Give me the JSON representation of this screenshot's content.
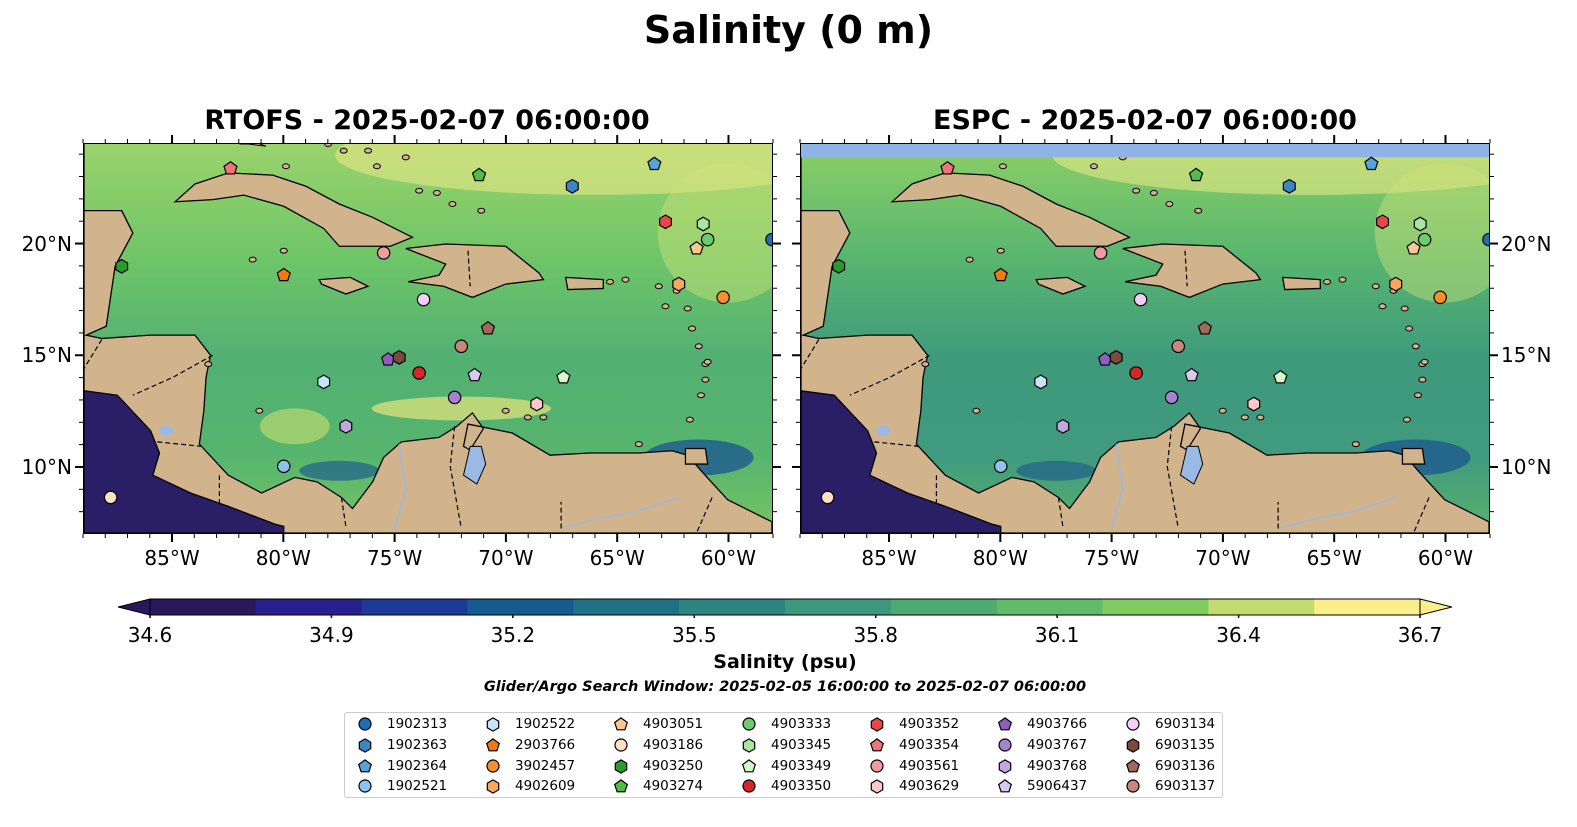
{
  "suptitle": "Salinity (0 m)",
  "panels": [
    {
      "title": "RTOFS - 2025-02-07 06:00:00",
      "model": "RTOFS"
    },
    {
      "title": "ESPC - 2025-02-07 06:00:00",
      "model": "ESPC"
    }
  ],
  "map_extent": {
    "lon": [
      -89,
      -58
    ],
    "lat": [
      7,
      24.5
    ]
  },
  "x_ticks": [
    "85°W",
    "80°W",
    "75°W",
    "70°W",
    "65°W",
    "60°W"
  ],
  "x_tick_values": [
    -85,
    -80,
    -75,
    -70,
    -65,
    -60
  ],
  "y_ticks": [
    "20°N",
    "15°N",
    "10°N"
  ],
  "y_tick_values": [
    20,
    15,
    10
  ],
  "colorbar": {
    "label": "Salinity (psu)",
    "ticks": [
      "34.6",
      "34.9",
      "35.2",
      "35.5",
      "35.8",
      "36.1",
      "36.4",
      "36.7"
    ],
    "range": [
      34.6,
      36.7
    ],
    "extend": "both",
    "cmap_stops": [
      "#29185e",
      "#26218f",
      "#1d3a9b",
      "#145b8f",
      "#1f7285",
      "#2d8581",
      "#3c977e",
      "#4caa72",
      "#5fbb67",
      "#7ecb5f",
      "#c0dc6e",
      "#fbee8b"
    ]
  },
  "search_window": "Glider/Argo Search Window: 2025-02-05 16:00:00 to 2025-02-07 06:00:00",
  "colors": {
    "land": "#d2b48c",
    "land_dark": "#2a1e66",
    "lake": "#9ab9e4",
    "espc_band": "#8fb3e6"
  },
  "floats": [
    {
      "id": "1902313",
      "marker": "circle",
      "color": "#1f6fb4",
      "lon": -58,
      "lat": 20.2
    },
    {
      "id": "1902363",
      "marker": "hexagon",
      "color": "#3d86c6",
      "lon": -67,
      "lat": 22.6
    },
    {
      "id": "1902364",
      "marker": "pentagon",
      "color": "#5aa2dc",
      "lon": -63.3,
      "lat": 23.6
    },
    {
      "id": "1902521",
      "marker": "circle",
      "color": "#8ec3ee",
      "lon": -80,
      "lat": 10
    },
    {
      "id": "1902522",
      "marker": "hexagon",
      "color": "#c6e5fb",
      "lon": -78.2,
      "lat": 13.8
    },
    {
      "id": "2903766",
      "marker": "pentagon",
      "color": "#f07a10",
      "lon": -80,
      "lat": 18.6
    },
    {
      "id": "3902457",
      "marker": "circle",
      "color": "#f78f2f",
      "lon": -60.2,
      "lat": 17.6
    },
    {
      "id": "4902609",
      "marker": "hexagon",
      "color": "#f9a65e",
      "lon": -62.2,
      "lat": 18.2
    },
    {
      "id": "4903051",
      "marker": "pentagon",
      "color": "#fac890",
      "lon": -61.4,
      "lat": 19.8
    },
    {
      "id": "4903186",
      "marker": "circle",
      "color": "#fde0c2",
      "lon": -87.8,
      "lat": 8.6
    },
    {
      "id": "4903250",
      "marker": "hexagon",
      "color": "#2a9a2a",
      "lon": -87.3,
      "lat": 19
    },
    {
      "id": "4903274",
      "marker": "pentagon",
      "color": "#55bb44",
      "lon": -71.2,
      "lat": 23.1
    },
    {
      "id": "4903333",
      "marker": "circle",
      "color": "#6ccb6c",
      "lon": -60.9,
      "lat": 20.2
    },
    {
      "id": "4903345",
      "marker": "hexagon",
      "color": "#a9e5a1",
      "lon": -61.1,
      "lat": 20.9
    },
    {
      "id": "4903349",
      "marker": "pentagon",
      "color": "#d6f7c9",
      "lon": -67.4,
      "lat": 14
    },
    {
      "id": "4903350",
      "marker": "circle",
      "color": "#d62728",
      "lon": -73.9,
      "lat": 14.2
    },
    {
      "id": "4903352",
      "marker": "hexagon",
      "color": "#e8474a",
      "lon": -62.8,
      "lat": 21
    },
    {
      "id": "4903354",
      "marker": "pentagon",
      "color": "#f0757a",
      "lon": -82.4,
      "lat": 23.4
    },
    {
      "id": "4903561",
      "marker": "circle",
      "color": "#f39b9e",
      "lon": -75.5,
      "lat": 19.6
    },
    {
      "id": "4903629",
      "marker": "hexagon",
      "color": "#fcc8ca",
      "lon": -68.6,
      "lat": 12.8
    },
    {
      "id": "4903766",
      "marker": "pentagon",
      "color": "#8e5fbf",
      "lon": -75.3,
      "lat": 14.8
    },
    {
      "id": "4903767",
      "marker": "circle",
      "color": "#a782cf",
      "lon": -72.3,
      "lat": 13.1
    },
    {
      "id": "4903768",
      "marker": "hexagon",
      "color": "#c2a7e0",
      "lon": -77.2,
      "lat": 11.8
    },
    {
      "id": "5906437",
      "marker": "pentagon",
      "color": "#d9c8f0",
      "lon": -71.4,
      "lat": 14.1
    },
    {
      "id": "6903134",
      "marker": "circle",
      "color": "#f0d0f6",
      "lon": -73.7,
      "lat": 17.5
    },
    {
      "id": "6903135",
      "marker": "hexagon",
      "color": "#7a4a3c",
      "lon": -74.8,
      "lat": 14.9
    },
    {
      "id": "6903136",
      "marker": "pentagon",
      "color": "#a1695a",
      "lon": -70.8,
      "lat": 16.2
    },
    {
      "id": "6903137",
      "marker": "circle",
      "color": "#c4897c",
      "lon": -72,
      "lat": 15.4
    }
  ]
}
